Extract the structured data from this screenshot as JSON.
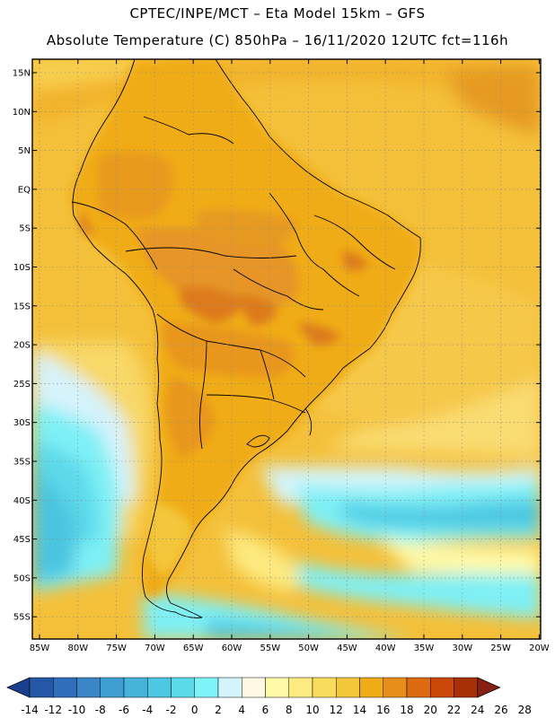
{
  "header": {
    "line1": "CPTEC/INPE/MCT –  Eta Model 15km – GFS",
    "line2": "Absolute Temperature (C) 850hPa – 16/11/2020 12UTC fct=116h"
  },
  "axes": {
    "lat_labels": [
      "15N",
      "10N",
      "5N",
      "EQ",
      "5S",
      "10S",
      "15S",
      "20S",
      "25S",
      "30S",
      "35S",
      "40S",
      "45S",
      "50S",
      "55S"
    ],
    "lon_labels": [
      "85W",
      "80W",
      "75W",
      "70W",
      "65W",
      "60W",
      "55W",
      "50W",
      "45W",
      "40W",
      "35W",
      "30W",
      "25W",
      "20W"
    ]
  },
  "colorbar": {
    "labels": [
      "-14",
      "-12",
      "-10",
      "-8",
      "-6",
      "-4",
      "-2",
      "0",
      "2",
      "4",
      "6",
      "8",
      "10",
      "12",
      "14",
      "16",
      "18",
      "20",
      "22",
      "24",
      "26",
      "28"
    ],
    "colors": [
      "#1b3f8f",
      "#2457a5",
      "#2f6fb9",
      "#3b86c8",
      "#3f9ed2",
      "#46b4da",
      "#4cc8e2",
      "#5bdbea",
      "#7df5f8",
      "#d4f4fb",
      "#fff8e2",
      "#fffaa8",
      "#fdea80",
      "#f9dc5c",
      "#f4c63a",
      "#f0ac16",
      "#e68e19",
      "#dd6a10",
      "#c9480a",
      "#a83008",
      "#852012"
    ]
  }
}
